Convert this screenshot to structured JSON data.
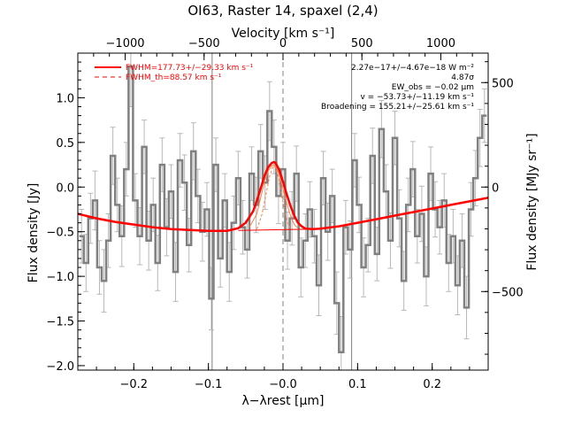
{
  "chart_data": {
    "type": "line",
    "title": "OI63, Raster 14, spaxel (2,4)",
    "xlabel": "λ−λrest [μm]",
    "ylabel": "Flux density [Jy]",
    "x2label": "Velocity [km s⁻¹]",
    "y2label": "Flux density [MJy sr⁻¹]",
    "xlim": [
      -0.275,
      0.275
    ],
    "ylim": [
      -2.05,
      1.5
    ],
    "x2lim": [
      -1300,
      1300
    ],
    "y2lim": [
      -876,
      641
    ],
    "xticks": [
      -0.2,
      -0.1,
      0.0,
      0.1,
      0.2
    ],
    "xtick_labels": [
      "−0.2",
      "−0.1",
      "−0.0",
      "0.1",
      "0.2"
    ],
    "yticks": [
      -2.0,
      -1.5,
      -1.0,
      -0.5,
      0.0,
      0.5,
      1.0
    ],
    "ytick_labels": [
      "−2.0",
      "−1.5",
      "−1.0",
      "−0.5",
      "0.0",
      "0.5",
      "1.0"
    ],
    "x2ticks": [
      -1000,
      -500,
      0,
      500,
      1000
    ],
    "x2tick_labels": [
      "−1000",
      "−500",
      "0",
      "500",
      "1000"
    ],
    "y2ticks": [
      -500,
      0,
      500
    ],
    "y2tick_labels": [
      "−500",
      "0",
      "500"
    ],
    "legend": {
      "placement": "top-left",
      "entries": [
        {
          "label": "FWHM=177.73+/−29.33 km s⁻¹",
          "color": "#ff0000",
          "style": "solid"
        },
        {
          "label": "FWHM_th=88.57 km s⁻¹",
          "color": "#ff0000",
          "style": "dashed"
        }
      ]
    },
    "annotations": [
      "2.27e−17+/−4.67e−18 W m⁻²",
      "4.87σ",
      "EW_obs = −0.02 μm",
      "v = −53.73+/−11.19 km s⁻¹",
      "Broadening = 155.21+/−25.61 km s⁻¹"
    ],
    "vertical_lines": [
      {
        "x": -0.095,
        "style": "solid",
        "color": "#808080"
      },
      {
        "x": 0.092,
        "style": "solid",
        "color": "#808080"
      },
      {
        "x": 0.0,
        "style": "dashed",
        "color": "#808080"
      }
    ],
    "series": [
      {
        "kind": "spectrum",
        "color": "#808080",
        "x": [
          -0.27,
          -0.264,
          -0.258,
          -0.252,
          -0.246,
          -0.24,
          -0.234,
          -0.228,
          -0.222,
          -0.216,
          -0.21,
          -0.204,
          -0.198,
          -0.192,
          -0.186,
          -0.18,
          -0.174,
          -0.168,
          -0.162,
          -0.156,
          -0.15,
          -0.144,
          -0.138,
          -0.132,
          -0.126,
          -0.12,
          -0.114,
          -0.108,
          -0.102,
          -0.096,
          -0.09,
          -0.084,
          -0.078,
          -0.072,
          -0.066,
          -0.06,
          -0.054,
          -0.048,
          -0.042,
          -0.036,
          -0.03,
          -0.024,
          -0.018,
          -0.012,
          -0.006,
          0.0,
          0.006,
          0.012,
          0.018,
          0.024,
          0.03,
          0.036,
          0.042,
          0.048,
          0.054,
          0.06,
          0.066,
          0.072,
          0.078,
          0.084,
          0.09,
          0.096,
          0.102,
          0.108,
          0.114,
          0.12,
          0.126,
          0.132,
          0.138,
          0.144,
          0.15,
          0.156,
          0.162,
          0.168,
          0.174,
          0.18,
          0.186,
          0.192,
          0.198,
          0.204,
          0.21,
          0.216,
          0.222,
          0.228,
          0.234,
          0.24,
          0.246,
          0.252,
          0.258,
          0.264,
          0.27
        ],
        "y": [
          -0.55,
          -0.85,
          -0.35,
          -0.15,
          -0.9,
          -1.05,
          -0.6,
          0.35,
          -0.2,
          -0.55,
          0.2,
          1.35,
          -0.15,
          -0.55,
          0.45,
          -0.6,
          -0.2,
          -0.85,
          0.25,
          -0.45,
          -0.05,
          -0.95,
          0.3,
          0.05,
          -0.65,
          0.4,
          -0.1,
          -0.5,
          -0.25,
          -1.25,
          0.25,
          -0.8,
          -0.15,
          -0.95,
          -0.4,
          0.1,
          -0.45,
          -0.7,
          0.15,
          -0.2,
          0.4,
          0.05,
          0.85,
          0.45,
          -0.1,
          0.2,
          -0.6,
          -0.35,
          0.15,
          -0.9,
          -0.6,
          -0.25,
          -0.55,
          -1.1,
          0.1,
          -0.5,
          -0.1,
          -1.3,
          -1.85,
          -0.45,
          -0.7,
          0.3,
          -0.2,
          -0.9,
          -0.65,
          0.35,
          -0.75,
          0.65,
          -0.05,
          -0.6,
          0.55,
          -0.35,
          -1.05,
          -0.2,
          0.2,
          -0.55,
          -0.3,
          -1.0,
          0.15,
          -0.25,
          -0.45,
          -0.15,
          -0.85,
          -0.55,
          -1.1,
          -0.6,
          -1.35,
          -0.25,
          0.1,
          0.55,
          0.8
        ],
        "err": [
          0.3,
          0.32,
          0.28,
          0.33,
          0.3,
          0.35,
          0.3,
          0.32,
          0.3,
          0.34,
          0.3,
          0.45,
          0.3,
          0.32,
          0.3,
          0.33,
          0.3,
          0.31,
          0.3,
          0.32,
          0.3,
          0.33,
          0.3,
          0.31,
          0.3,
          0.32,
          0.3,
          0.33,
          0.3,
          0.35,
          0.3,
          0.32,
          0.3,
          0.33,
          0.3,
          0.3,
          0.3,
          0.32,
          0.3,
          0.31,
          0.3,
          0.3,
          0.33,
          0.3,
          0.31,
          0.3,
          0.32,
          0.3,
          0.31,
          0.33,
          0.3,
          0.31,
          0.3,
          0.34,
          0.3,
          0.32,
          0.3,
          0.35,
          0.4,
          0.3,
          0.32,
          0.3,
          0.31,
          0.33,
          0.3,
          0.31,
          0.3,
          0.32,
          0.3,
          0.31,
          0.3,
          0.32,
          0.33,
          0.3,
          0.31,
          0.3,
          0.31,
          0.33,
          0.3,
          0.31,
          0.3,
          0.3,
          0.32,
          0.3,
          0.33,
          0.3,
          0.35,
          0.3,
          0.31,
          0.32,
          0.3
        ]
      },
      {
        "kind": "fit-total",
        "name": "FWHM=177.73+/−29.33 km s⁻¹",
        "color": "#ff0000",
        "x": [
          -0.275,
          -0.25,
          -0.225,
          -0.2,
          -0.175,
          -0.15,
          -0.125,
          -0.1,
          -0.075,
          -0.06,
          -0.05,
          -0.04,
          -0.035,
          -0.03,
          -0.025,
          -0.02,
          -0.015,
          -0.012,
          -0.01,
          -0.005,
          0.0,
          0.005,
          0.01,
          0.015,
          0.02,
          0.025,
          0.03,
          0.04,
          0.05,
          0.075,
          0.1,
          0.125,
          0.15,
          0.175,
          0.2,
          0.225,
          0.25,
          0.275
        ],
        "y": [
          -0.3,
          -0.35,
          -0.39,
          -0.42,
          -0.45,
          -0.47,
          -0.48,
          -0.49,
          -0.49,
          -0.46,
          -0.4,
          -0.27,
          -0.15,
          -0.02,
          0.12,
          0.22,
          0.27,
          0.28,
          0.27,
          0.19,
          0.06,
          -0.08,
          -0.21,
          -0.32,
          -0.4,
          -0.44,
          -0.465,
          -0.47,
          -0.465,
          -0.44,
          -0.4,
          -0.36,
          -0.32,
          -0.28,
          -0.24,
          -0.2,
          -0.16,
          -0.12
        ]
      },
      {
        "kind": "fit-baseline",
        "color": "#ff0000",
        "x": [
          -0.06,
          0.04
        ],
        "y": [
          -0.485,
          -0.47
        ]
      },
      {
        "kind": "fit-gaussian",
        "color": "#ff8040",
        "x": [
          -0.045,
          -0.035,
          -0.03,
          -0.025,
          -0.02,
          -0.015,
          -0.012,
          -0.01,
          -0.005,
          0.0,
          0.005,
          0.01,
          0.015,
          0.02
        ],
        "y": [
          -0.45,
          -0.3,
          -0.12,
          0.05,
          0.18,
          0.24,
          0.25,
          0.24,
          0.14,
          -0.02,
          -0.18,
          -0.32,
          -0.42,
          -0.46
        ]
      },
      {
        "kind": "fit-thermal",
        "name": "FWHM_th=88.57 km s⁻¹",
        "color": "#ff8040",
        "style": "dashed",
        "x": [
          -0.035,
          -0.028,
          -0.022,
          -0.018,
          -0.014,
          -0.012,
          -0.01,
          -0.006,
          -0.002,
          0.002,
          0.006,
          0.01
        ],
        "y": [
          -0.47,
          -0.3,
          -0.05,
          0.12,
          0.22,
          0.24,
          0.22,
          0.1,
          -0.08,
          -0.26,
          -0.4,
          -0.47
        ]
      }
    ]
  }
}
